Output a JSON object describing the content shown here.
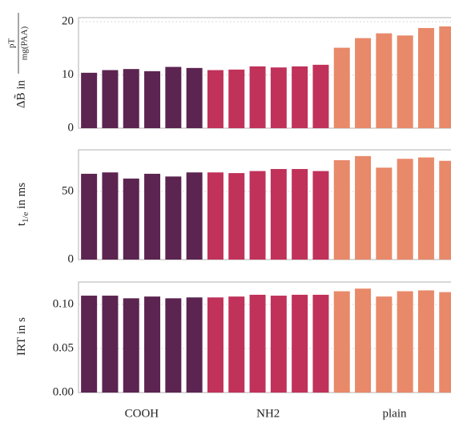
{
  "chart_data": [
    {
      "type": "bar",
      "ylabel": {
        "main": "ΔB̃ in",
        "numerator": "pT",
        "denominator": "mg(PAA)"
      },
      "colors": [
        "#5c2451",
        "#c0325a",
        "#e8896a"
      ],
      "values": [
        [
          10.4,
          10.9,
          11.1,
          10.7,
          11.5,
          11.3
        ],
        [
          10.9,
          11.0,
          11.6,
          11.4,
          11.6,
          11.9
        ],
        [
          15.1,
          16.9,
          17.8,
          17.4,
          18.8,
          19.1
        ]
      ],
      "ylim": [
        0,
        20.75
      ],
      "yticks": [
        0,
        10,
        20
      ],
      "grid": true
    },
    {
      "type": "bar",
      "ylabel": {
        "main": "t",
        "sub": "1/e",
        "rest": " in ms"
      },
      "colors": [
        "#5c2451",
        "#c0325a",
        "#e8896a"
      ],
      "values": [
        [
          63,
          64,
          59.5,
          63,
          61,
          64
        ],
        [
          64,
          63.5,
          65,
          66.5,
          66.5,
          65
        ],
        [
          73,
          76,
          67.5,
          74,
          75,
          72.5
        ]
      ],
      "ylim": [
        0,
        80.6
      ],
      "yticks": [
        0,
        50
      ],
      "grid": true
    },
    {
      "type": "bar",
      "ylabel": {
        "main": "IRT in s"
      },
      "categories": [
        "COOH",
        "NH2",
        "plain"
      ],
      "colors": [
        "#5c2451",
        "#c0325a",
        "#e8896a"
      ],
      "values": [
        [
          0.11,
          0.11,
          0.107,
          0.109,
          0.107,
          0.108
        ],
        [
          0.108,
          0.109,
          0.111,
          0.11,
          0.111,
          0.111
        ],
        [
          0.115,
          0.118,
          0.109,
          0.115,
          0.116,
          0.114
        ]
      ],
      "ylim": [
        0,
        0.1255
      ],
      "yticks": [
        {
          "value": 0,
          "label": "0.00"
        },
        {
          "value": 0.05,
          "label": "0.05"
        },
        {
          "value": 0.1,
          "label": "0.10"
        }
      ],
      "grid": true
    }
  ]
}
